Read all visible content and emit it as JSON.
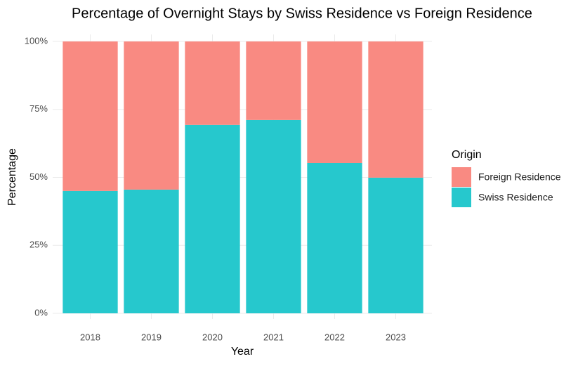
{
  "chart_data": {
    "type": "stacked_bar",
    "title": "Percentage of Overnight Stays by Swiss Residence vs Foreign Residence",
    "x_label": "Year",
    "y_label": "Percentage",
    "categories": [
      "2018",
      "2019",
      "2020",
      "2021",
      "2022",
      "2023"
    ],
    "series": [
      {
        "name": "Foreign Residence",
        "color": "#f98a82",
        "values": [
          55,
          54.5,
          30.7,
          28.9,
          44.7,
          50.1
        ]
      },
      {
        "name": "Swiss Residence",
        "color": "#26c8cd",
        "values": [
          45,
          45.5,
          69.3,
          71.1,
          55.3,
          49.9
        ]
      }
    ],
    "legend_title": "Origin",
    "legend": "right",
    "ylim": [
      0,
      100
    ],
    "yticks": [
      {
        "value": 0,
        "label": "0%"
      },
      {
        "value": 25,
        "label": "25%"
      },
      {
        "value": 50,
        "label": "50%"
      },
      {
        "value": 75,
        "label": "75%"
      },
      {
        "value": 100,
        "label": "100%"
      }
    ],
    "grid": true
  }
}
